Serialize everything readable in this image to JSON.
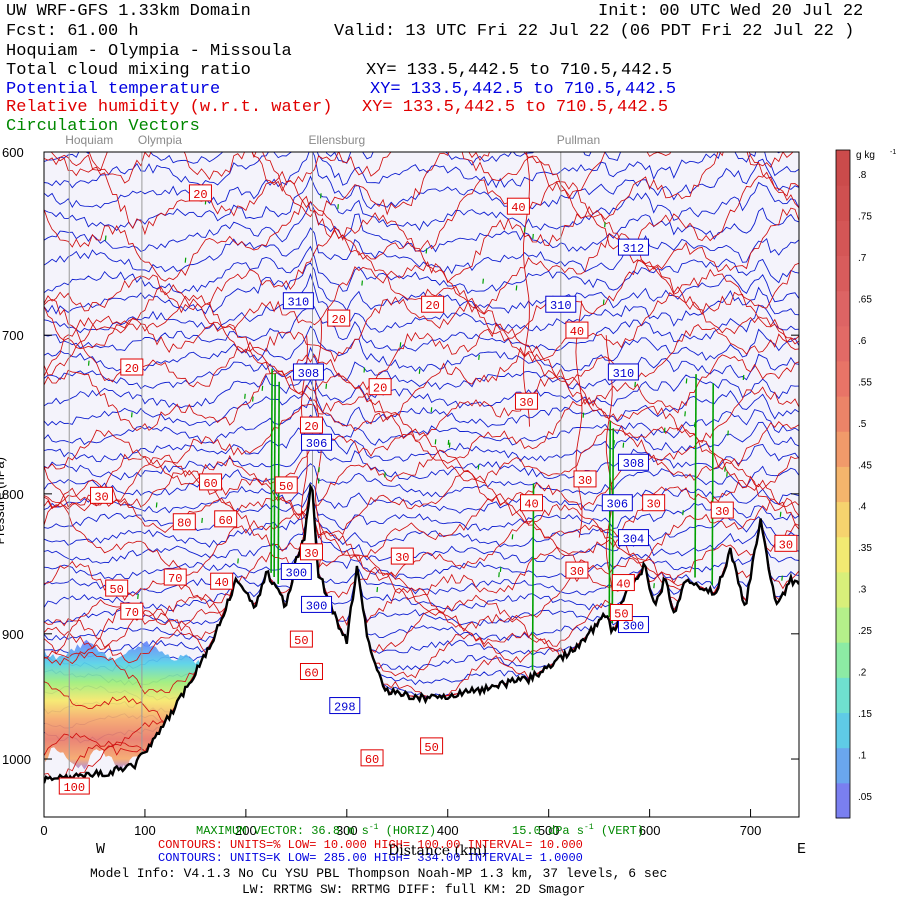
{
  "header": {
    "domain": "UW WRF-GFS 1.33km Domain",
    "init": "Init: 00 UTC Wed 20 Jul 22",
    "fcst": "Fcst:   61.00 h",
    "valid": "Valid: 13 UTC Fri 22 Jul 22   (06 PDT Fri 22 Jul 22  )",
    "route": "Hoquiam - Olympia - Missoula"
  },
  "fields": [
    {
      "name": "Total cloud mixing ratio",
      "xy": "XY= 133.5,442.5 to 710.5,442.5",
      "color": "#000000"
    },
    {
      "name": "Potential temperature",
      "xy": "XY= 133.5,442.5 to 710.5,442.5",
      "color": "#0000e0"
    },
    {
      "name": "Relative humidity (w.r.t. water)",
      "xy": "XY= 133.5,442.5 to 710.5,442.5",
      "color": "#e00000"
    },
    {
      "name": "Circulation Vectors",
      "xy": "",
      "color": "#008800"
    }
  ],
  "locations": [
    {
      "name": "Hoquiam",
      "x": 25
    },
    {
      "name": "Olympia",
      "x": 97
    },
    {
      "name": "Ellensburg",
      "x": 266
    },
    {
      "name": "Pullman",
      "x": 512
    }
  ],
  "footer": {
    "vector_left": "MAXIMUM VECTOR:  36.8 m s",
    "vector_sup1": "-1",
    "vector_mid": " (HORIZ)",
    "vector_right": "15.0 dPa s",
    "vector_sup2": "-1",
    "vector_end": " (VERT)",
    "contours_red": "CONTOURS:  UNITS=%  LOW=  10.000        HIGH=  100.00       INTERVAL=  10.000",
    "contours_blue": "CONTOURS:  UNITS=K  LOW=  285.00        HIGH=  334.00       INTERVAL=  1.0000",
    "model": "Model Info: V4.1.3    No Cu   YSU PBL  Thompson     Noah-MP   1.3 km,  37 levels,    6 sec",
    "model2": "LW: RRTMG SW: RRTMG    DIFF: full   KM: 2D Smagor",
    "west": "W",
    "east": "E",
    "xlabel": "Distance (km)",
    "ylabel": "Pressure (hPa)"
  },
  "chart_data": {
    "type": "contour",
    "title": "Cross section Hoquiam - Olympia - Missoula",
    "xlabel": "Distance (km)",
    "ylabel": "Pressure (hPa)",
    "xlim": [
      0,
      748
    ],
    "ylim": [
      1050,
      600
    ],
    "xticks": [
      0,
      100,
      200,
      300,
      400,
      500,
      600,
      700
    ],
    "yticks": [
      600,
      700,
      800,
      900,
      1000
    ],
    "ytick_labels": [
      "600",
      "700",
      "800",
      "900",
      "1000"
    ],
    "terrain": {
      "x": [
        0,
        30,
        60,
        90,
        120,
        150,
        170,
        180,
        190,
        200,
        210,
        220,
        230,
        240,
        250,
        258,
        265,
        272,
        280,
        290,
        300,
        310,
        320,
        330,
        340,
        360,
        380,
        400,
        420,
        440,
        460,
        480,
        500,
        520,
        540,
        555,
        565,
        575,
        585,
        595,
        605,
        615,
        625,
        635,
        650,
        665,
        680,
        695,
        710,
        725,
        740,
        748
      ],
      "p": [
        1018,
        1015,
        1012,
        1005,
        970,
        930,
        900,
        880,
        862,
        870,
        880,
        855,
        865,
        880,
        845,
        830,
        790,
        855,
        870,
        890,
        905,
        850,
        900,
        930,
        945,
        948,
        950,
        948,
        945,
        942,
        938,
        935,
        925,
        915,
        900,
        885,
        900,
        870,
        860,
        850,
        880,
        860,
        885,
        860,
        865,
        870,
        840,
        880,
        815,
        880,
        860,
        865
      ]
    },
    "theta_contours": {
      "units": "K",
      "low": 285,
      "high": 334,
      "interval": 1,
      "labels": [
        {
          "value": "310",
          "x": 252,
          "p": 680
        },
        {
          "value": "308",
          "x": 262,
          "p": 722
        },
        {
          "value": "306",
          "x": 270,
          "p": 766
        },
        {
          "value": "300",
          "x": 250,
          "p": 854
        },
        {
          "value": "300",
          "x": 270,
          "p": 878
        },
        {
          "value": "298",
          "x": 298,
          "p": 956
        },
        {
          "value": "310",
          "x": 512,
          "p": 682
        },
        {
          "value": "312",
          "x": 584,
          "p": 650
        },
        {
          "value": "310",
          "x": 574,
          "p": 722
        },
        {
          "value": "308",
          "x": 584,
          "p": 779
        },
        {
          "value": "306",
          "x": 568,
          "p": 806
        },
        {
          "value": "304",
          "x": 584,
          "p": 830
        },
        {
          "value": "300",
          "x": 584,
          "p": 893
        }
      ]
    },
    "rh_contours": {
      "units": "%",
      "low": 10,
      "high": 100,
      "interval": 10,
      "labels": [
        {
          "value": "20",
          "x": 155,
          "p": 621
        },
        {
          "value": "20",
          "x": 87,
          "p": 719
        },
        {
          "value": "20",
          "x": 292,
          "p": 690
        },
        {
          "value": "20",
          "x": 385,
          "p": 682
        },
        {
          "value": "20",
          "x": 333,
          "p": 731
        },
        {
          "value": "20",
          "x": 265,
          "p": 755
        },
        {
          "value": "40",
          "x": 470,
          "p": 628
        },
        {
          "value": "40",
          "x": 528,
          "p": 697
        },
        {
          "value": "30",
          "x": 478,
          "p": 740
        },
        {
          "value": "30",
          "x": 57,
          "p": 801
        },
        {
          "value": "60",
          "x": 165,
          "p": 792
        },
        {
          "value": "60",
          "x": 180,
          "p": 817
        },
        {
          "value": "80",
          "x": 139,
          "p": 819
        },
        {
          "value": "50",
          "x": 240,
          "p": 794
        },
        {
          "value": "30",
          "x": 265,
          "p": 840
        },
        {
          "value": "30",
          "x": 355,
          "p": 843
        },
        {
          "value": "70",
          "x": 130,
          "p": 858
        },
        {
          "value": "40",
          "x": 176,
          "p": 861
        },
        {
          "value": "50",
          "x": 72,
          "p": 866
        },
        {
          "value": "70",
          "x": 87,
          "p": 883
        },
        {
          "value": "30",
          "x": 536,
          "p": 790
        },
        {
          "value": "40",
          "x": 483,
          "p": 806
        },
        {
          "value": "30",
          "x": 604,
          "p": 806
        },
        {
          "value": "30",
          "x": 672,
          "p": 811
        },
        {
          "value": "30",
          "x": 528,
          "p": 853
        },
        {
          "value": "40",
          "x": 574,
          "p": 862
        },
        {
          "value": "30",
          "x": 735,
          "p": 834
        },
        {
          "value": "50",
          "x": 572,
          "p": 884
        },
        {
          "value": "50",
          "x": 255,
          "p": 904
        },
        {
          "value": "60",
          "x": 265,
          "p": 929
        },
        {
          "value": "60",
          "x": 325,
          "p": 999
        },
        {
          "value": "50",
          "x": 384,
          "p": 989
        },
        {
          "value": "100",
          "x": 30,
          "p": 1023
        }
      ]
    },
    "cloud_mixing_ratio": {
      "units": "g kg-1",
      "colorbar_labels": [
        ".05",
        ".1",
        ".15",
        ".2",
        ".25",
        ".3",
        ".35",
        ".4",
        ".45",
        ".5",
        ".55",
        ".6",
        ".65",
        ".7",
        ".75",
        ".8"
      ],
      "colorbar_units": "g kg",
      "colorbar_sup": "-1",
      "cloud_region": {
        "x_range": [
          0,
          160
        ],
        "p_range": [
          910,
          1005
        ]
      }
    },
    "vector_stations_green": [
      225,
      228,
      232,
      484,
      560,
      563,
      645,
      662
    ]
  }
}
